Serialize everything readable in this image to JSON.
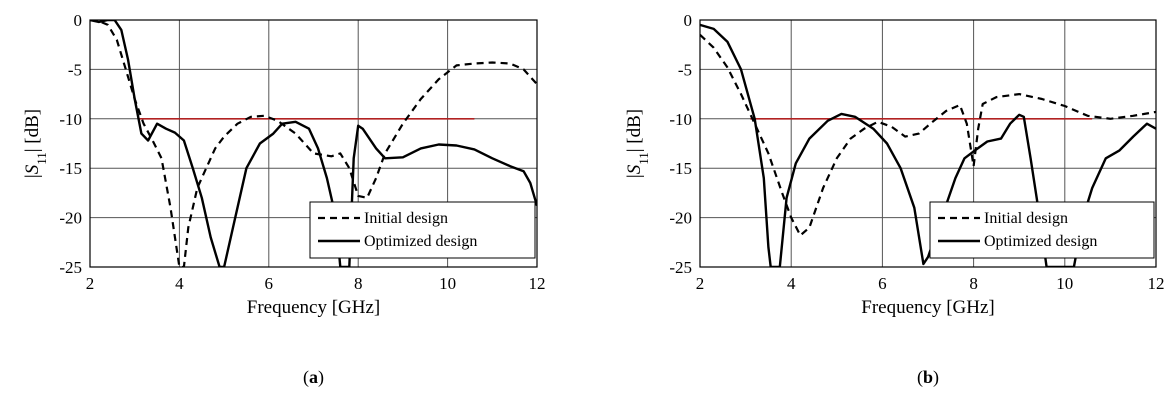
{
  "chart_data": [
    {
      "type": "line",
      "caption": "(a)",
      "caption_letter": "a",
      "xlabel": "Frequency [GHz]",
      "ylabel": "|S11| [dB]",
      "xlim": [
        2,
        12
      ],
      "ylim": [
        -25,
        0
      ],
      "xticks": [
        2,
        4,
        6,
        8,
        10,
        12
      ],
      "yticks": [
        0,
        -5,
        -10,
        -15,
        -20,
        -25
      ],
      "grid": true,
      "legend_position": "bottom-right",
      "threshold": {
        "value": -10,
        "x_range": [
          3.1,
          10.6
        ],
        "color": "#b22222"
      },
      "series": [
        {
          "name": "Initial design",
          "style": "dashed",
          "points": [
            [
              2,
              0
            ],
            [
              2.2,
              -0.1
            ],
            [
              2.4,
              -0.5
            ],
            [
              2.6,
              -2
            ],
            [
              2.8,
              -5
            ],
            [
              3.0,
              -8
            ],
            [
              3.2,
              -10.5
            ],
            [
              3.4,
              -12.2
            ],
            [
              3.6,
              -14
            ],
            [
              3.8,
              -19
            ],
            [
              4.0,
              -25
            ],
            [
              4.1,
              -25
            ],
            [
              4.2,
              -21
            ],
            [
              4.4,
              -17
            ],
            [
              4.6,
              -15
            ],
            [
              4.8,
              -13
            ],
            [
              5.0,
              -11.8
            ],
            [
              5.3,
              -10.5
            ],
            [
              5.6,
              -9.8
            ],
            [
              5.9,
              -9.7
            ],
            [
              6.2,
              -10.2
            ],
            [
              6.6,
              -11.5
            ],
            [
              7.0,
              -13.5
            ],
            [
              7.4,
              -13.8
            ],
            [
              7.6,
              -13.5
            ],
            [
              7.8,
              -15
            ],
            [
              8.0,
              -17.8
            ],
            [
              8.2,
              -18
            ],
            [
              8.4,
              -16
            ],
            [
              8.6,
              -13.5
            ],
            [
              9.0,
              -10.5
            ],
            [
              9.4,
              -8
            ],
            [
              9.8,
              -6
            ],
            [
              10.2,
              -4.6
            ],
            [
              10.6,
              -4.4
            ],
            [
              11.0,
              -4.3
            ],
            [
              11.4,
              -4.4
            ],
            [
              11.7,
              -5
            ],
            [
              12.0,
              -6.5
            ]
          ]
        },
        {
          "name": "Optimized design",
          "style": "solid",
          "points": [
            [
              2,
              0
            ],
            [
              2.2,
              -0.2
            ],
            [
              2.4,
              0
            ],
            [
              2.55,
              0
            ],
            [
              2.7,
              -1
            ],
            [
              2.85,
              -4
            ],
            [
              3.0,
              -8
            ],
            [
              3.15,
              -11.5
            ],
            [
              3.3,
              -12.2
            ],
            [
              3.5,
              -10.5
            ],
            [
              3.7,
              -11
            ],
            [
              3.9,
              -11.4
            ],
            [
              4.1,
              -12.2
            ],
            [
              4.3,
              -15
            ],
            [
              4.5,
              -18
            ],
            [
              4.7,
              -22
            ],
            [
              4.9,
              -25
            ],
            [
              5.0,
              -25
            ],
            [
              5.2,
              -21
            ],
            [
              5.5,
              -15
            ],
            [
              5.8,
              -12.5
            ],
            [
              6.1,
              -11.5
            ],
            [
              6.3,
              -10.5
            ],
            [
              6.6,
              -10.3
            ],
            [
              6.9,
              -11
            ],
            [
              7.1,
              -13
            ],
            [
              7.3,
              -16
            ],
            [
              7.5,
              -20
            ],
            [
              7.6,
              -25
            ],
            [
              7.8,
              -25
            ],
            [
              7.9,
              -14
            ],
            [
              8.0,
              -10.7
            ],
            [
              8.1,
              -11
            ],
            [
              8.4,
              -13
            ],
            [
              8.6,
              -14
            ],
            [
              9.0,
              -13.9
            ],
            [
              9.4,
              -13
            ],
            [
              9.8,
              -12.6
            ],
            [
              10.2,
              -12.7
            ],
            [
              10.6,
              -13.1
            ],
            [
              11.0,
              -14
            ],
            [
              11.4,
              -14.8
            ],
            [
              11.7,
              -15.3
            ],
            [
              11.85,
              -16.5
            ],
            [
              12.0,
              -18.8
            ]
          ]
        }
      ]
    },
    {
      "type": "line",
      "caption": "(b)",
      "caption_letter": "b",
      "xlabel": "Frequency [GHz]",
      "ylabel": "|S11| [dB]",
      "xlim": [
        2,
        12
      ],
      "ylim": [
        -25,
        0
      ],
      "xticks": [
        2,
        4,
        6,
        8,
        10,
        12
      ],
      "yticks": [
        0,
        -5,
        -10,
        -15,
        -20,
        -25
      ],
      "grid": true,
      "legend_position": "bottom-right",
      "threshold": {
        "value": -10,
        "x_range": [
          3.1,
          10.6
        ],
        "color": "#b22222"
      },
      "series": [
        {
          "name": "Initial design",
          "style": "dashed",
          "points": [
            [
              2,
              -1.5
            ],
            [
              2.3,
              -2.8
            ],
            [
              2.6,
              -4.8
            ],
            [
              2.9,
              -7.5
            ],
            [
              3.2,
              -10.5
            ],
            [
              3.5,
              -13.5
            ],
            [
              3.8,
              -17.5
            ],
            [
              4.0,
              -20
            ],
            [
              4.2,
              -21.8
            ],
            [
              4.4,
              -21
            ],
            [
              4.7,
              -17
            ],
            [
              5.0,
              -14
            ],
            [
              5.3,
              -12
            ],
            [
              5.6,
              -11
            ],
            [
              5.9,
              -10.3
            ],
            [
              6.2,
              -10.8
            ],
            [
              6.5,
              -11.8
            ],
            [
              6.8,
              -11.5
            ],
            [
              7.1,
              -10.3
            ],
            [
              7.4,
              -9.2
            ],
            [
              7.7,
              -8.6
            ],
            [
              7.85,
              -10.5
            ],
            [
              8.0,
              -14.8
            ],
            [
              8.1,
              -11
            ],
            [
              8.2,
              -8.5
            ],
            [
              8.5,
              -7.8
            ],
            [
              9.0,
              -7.5
            ],
            [
              9.5,
              -8
            ],
            [
              10.0,
              -8.7
            ],
            [
              10.5,
              -9.7
            ],
            [
              11.0,
              -10
            ],
            [
              11.5,
              -9.7
            ],
            [
              12.0,
              -9.3
            ]
          ]
        },
        {
          "name": "Optimized design",
          "style": "solid",
          "points": [
            [
              2,
              -0.5
            ],
            [
              2.3,
              -0.9
            ],
            [
              2.6,
              -2.2
            ],
            [
              2.9,
              -5
            ],
            [
              3.2,
              -10
            ],
            [
              3.4,
              -16
            ],
            [
              3.5,
              -23
            ],
            [
              3.55,
              -25
            ],
            [
              3.75,
              -25
            ],
            [
              3.9,
              -18
            ],
            [
              4.1,
              -14.5
            ],
            [
              4.4,
              -12
            ],
            [
              4.8,
              -10.2
            ],
            [
              5.1,
              -9.5
            ],
            [
              5.4,
              -9.8
            ],
            [
              5.8,
              -11
            ],
            [
              6.1,
              -12.5
            ],
            [
              6.4,
              -15
            ],
            [
              6.7,
              -19
            ],
            [
              6.9,
              -24.7
            ],
            [
              7.0,
              -24
            ],
            [
              7.3,
              -20
            ],
            [
              7.6,
              -16
            ],
            [
              7.8,
              -14
            ],
            [
              8.0,
              -13.3
            ],
            [
              8.3,
              -12.3
            ],
            [
              8.6,
              -12
            ],
            [
              8.8,
              -10.5
            ],
            [
              9.0,
              -9.6
            ],
            [
              9.1,
              -9.8
            ],
            [
              9.25,
              -14
            ],
            [
              9.45,
              -20
            ],
            [
              9.6,
              -25
            ],
            [
              10.2,
              -25
            ],
            [
              10.4,
              -20
            ],
            [
              10.6,
              -17
            ],
            [
              10.9,
              -14
            ],
            [
              11.2,
              -13.2
            ],
            [
              11.5,
              -11.8
            ],
            [
              11.8,
              -10.5
            ],
            [
              12.0,
              -11
            ]
          ]
        }
      ]
    }
  ]
}
